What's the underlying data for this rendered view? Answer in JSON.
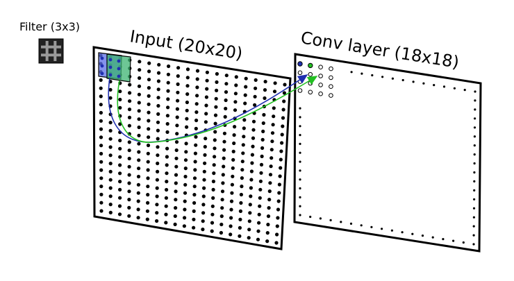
{
  "filter_label": "Filter (3x3)",
  "input_label": "Input (20x20)",
  "conv_label": "Conv layer (18x18)",
  "input_grid_size": 20,
  "conv_grid_size": 18,
  "filter_size": 3,
  "colors": {
    "blue_window": "#5b6ee6",
    "green_window": "#3cb371",
    "blue_arrow": "#1f2fb0",
    "green_arrow": "#22c022",
    "filter_dark": "#222222",
    "filter_light": "#9a9a9a"
  }
}
